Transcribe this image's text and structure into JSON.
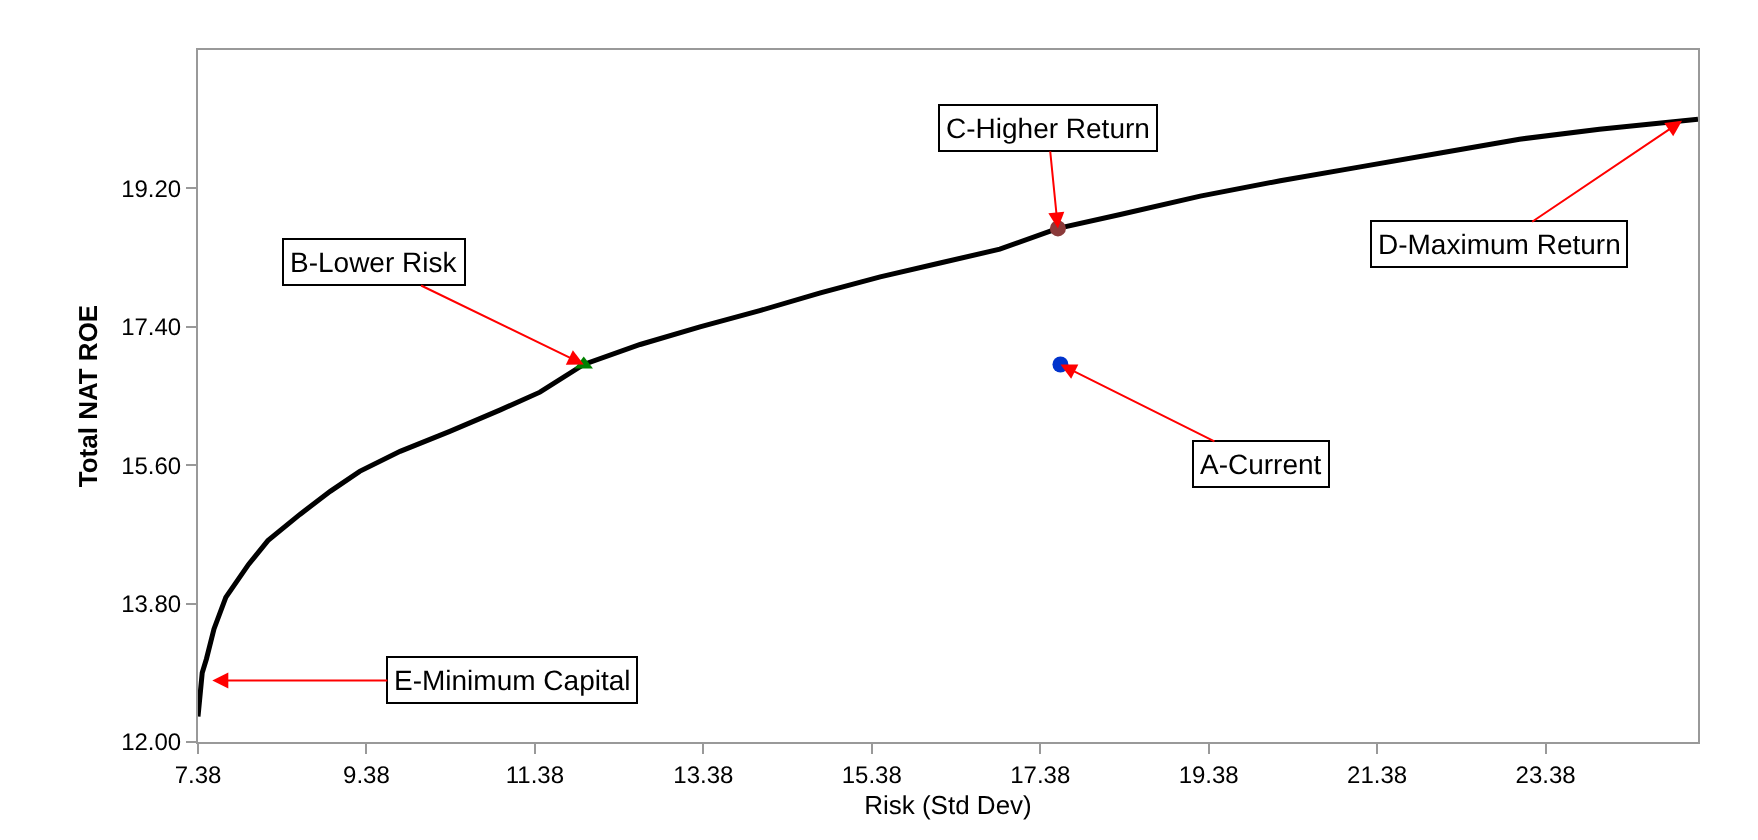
{
  "chart_data": {
    "type": "line",
    "xlabel": "Risk (Std Dev)",
    "ylabel": "Total NAT ROE",
    "xlim": [
      7.38,
      25.19
    ],
    "xticks": [
      7.38,
      9.38,
      11.38,
      13.38,
      15.38,
      17.38,
      19.38,
      21.38,
      23.38
    ],
    "ylim": [
      12,
      21.0
    ],
    "yticks": [
      {
        "value": 12,
        "label": "12.00"
      },
      {
        "value": 13.8,
        "label": "13.80"
      },
      {
        "value": 15.6,
        "label": "15.60"
      },
      {
        "value": 17.4,
        "label": "17.40"
      },
      {
        "value": 19.2,
        "label": "19.20"
      }
    ],
    "grid": false,
    "series": [
      {
        "color": "#000000",
        "marker": "none",
        "line_style": "solid",
        "x": [
          7.38,
          7.43,
          7.48,
          7.57,
          7.71,
          7.98,
          8.21,
          8.59,
          8.95,
          9.3,
          9.78,
          10.37,
          10.97,
          11.44,
          11.96,
          12.63,
          13.34,
          14.05,
          14.77,
          15.48,
          16.19,
          16.9,
          17.59,
          18.33,
          19.28,
          20.23,
          21.18,
          22.13,
          23.07,
          24.02,
          25.19
        ],
        "values": [
          12.33,
          12.9,
          13.08,
          13.47,
          13.88,
          14.31,
          14.62,
          14.96,
          15.26,
          15.52,
          15.78,
          16.04,
          16.32,
          16.55,
          16.91,
          17.17,
          17.4,
          17.61,
          17.84,
          18.05,
          18.23,
          18.41,
          18.68,
          18.86,
          19.1,
          19.3,
          19.48,
          19.66,
          19.84,
          19.97,
          20.1
        ]
      },
      {
        "type": "scatter",
        "color": "#008000",
        "marker": "triangle",
        "x": [
          11.96
        ],
        "values": [
          16.91
        ]
      },
      {
        "type": "scatter",
        "color": "#8b3a3a",
        "marker": "circle",
        "x": [
          17.59
        ],
        "values": [
          18.68
        ]
      },
      {
        "type": "scatter",
        "color": "#0033cc",
        "marker": "circle",
        "x": [
          17.62
        ],
        "values": [
          16.91
        ]
      }
    ],
    "annotations": [
      {
        "text": "B-Lower Risk",
        "x": 11.96,
        "y": 16.91
      },
      {
        "text": "C-Higher Return",
        "x": 17.59,
        "y": 18.68
      },
      {
        "text": "D-Maximum Return",
        "x": 25.0,
        "y": 20.08
      },
      {
        "text": "A-Current",
        "x": 17.62,
        "y": 16.91
      },
      {
        "text": "E-Minimum Capital",
        "x": 7.55,
        "y": 12.8
      }
    ]
  }
}
